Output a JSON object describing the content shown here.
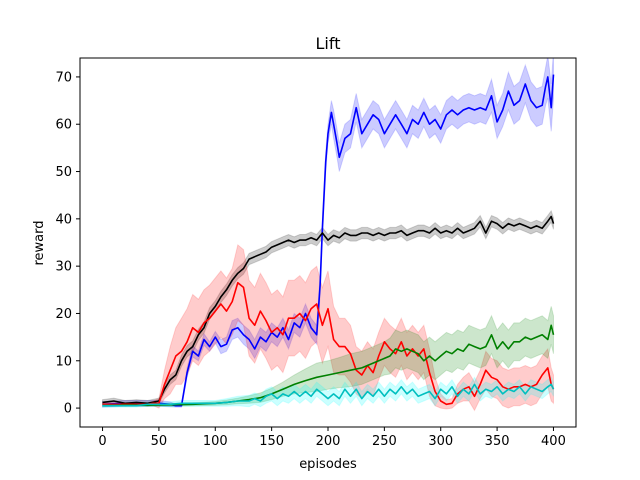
{
  "chart_data": {
    "type": "line",
    "title": "Lift",
    "xlabel": "episodes",
    "ylabel": "reward",
    "xlim": [
      -20,
      420
    ],
    "ylim": [
      -4,
      74
    ],
    "xticks": [
      0,
      50,
      100,
      150,
      200,
      250,
      300,
      350,
      400
    ],
    "yticks": [
      0,
      10,
      20,
      30,
      40,
      50,
      60,
      70
    ],
    "grid": false,
    "legend": "none",
    "series": [
      {
        "color": "#0000ff",
        "band_color": "#0000ff",
        "x": [
          0,
          10,
          20,
          30,
          40,
          50,
          60,
          65,
          70,
          75,
          80,
          85,
          90,
          95,
          100,
          105,
          110,
          115,
          120,
          125,
          130,
          135,
          140,
          145,
          150,
          155,
          160,
          165,
          170,
          175,
          180,
          185,
          190,
          193,
          195,
          198,
          200,
          203,
          205,
          208,
          210,
          215,
          220,
          225,
          230,
          235,
          240,
          245,
          250,
          255,
          260,
          265,
          270,
          275,
          280,
          285,
          290,
          295,
          300,
          305,
          310,
          315,
          320,
          325,
          330,
          335,
          340,
          345,
          350,
          355,
          360,
          365,
          370,
          375,
          380,
          385,
          390,
          393,
          395,
          398,
          400
        ],
        "y": [
          0.8,
          0.9,
          1.0,
          1.0,
          1.0,
          1.0,
          0.8,
          0.5,
          0.5,
          7.5,
          12.0,
          11.0,
          14.5,
          13.0,
          15.0,
          13.0,
          13.5,
          16.5,
          17.0,
          15.5,
          14.5,
          12.5,
          15.0,
          14.0,
          16.0,
          15.0,
          17.0,
          14.5,
          18.0,
          17.0,
          20.0,
          17.0,
          15.5,
          26.0,
          38.0,
          52.0,
          58.0,
          62.5,
          60.0,
          56.0,
          53.0,
          57.0,
          58.0,
          63.5,
          58.0,
          60.0,
          62.0,
          61.0,
          58.0,
          60.0,
          62.0,
          60.0,
          58.0,
          61.0,
          60.0,
          62.5,
          60.0,
          61.0,
          59.0,
          62.0,
          63.0,
          62.0,
          63.0,
          63.5,
          63.0,
          63.5,
          63.0,
          66.0,
          60.5,
          63.0,
          67.0,
          64.0,
          65.0,
          68.5,
          65.0,
          63.5,
          64.0,
          68.0,
          70.0,
          63.5,
          70.5
        ],
        "band": [
          0.6,
          0.6,
          0.6,
          0.6,
          0.6,
          0.6,
          0.5,
          0.3,
          0.3,
          1.0,
          1.2,
          1.0,
          1.2,
          1.0,
          1.2,
          1.5,
          1.5,
          2.0,
          2.0,
          2.0,
          2.0,
          2.0,
          2.0,
          2.0,
          2.0,
          2.0,
          2.0,
          2.0,
          2.0,
          2.0,
          2.0,
          2.0,
          2.0,
          2.0,
          2.0,
          2.0,
          2.0,
          2.5,
          3.0,
          3.0,
          3.0,
          3.0,
          3.0,
          3.0,
          3.0,
          3.0,
          3.0,
          3.0,
          3.0,
          3.0,
          3.0,
          3.0,
          3.0,
          3.0,
          3.0,
          3.0,
          3.0,
          3.0,
          3.0,
          3.0,
          3.0,
          3.0,
          3.0,
          3.0,
          3.0,
          3.0,
          3.0,
          3.5,
          3.5,
          3.5,
          4.0,
          4.0,
          4.0,
          4.0,
          4.0,
          4.0,
          4.0,
          4.0,
          4.5,
          5.0,
          5.0
        ]
      },
      {
        "color": "#000000",
        "band_color": "#000000",
        "x": [
          0,
          10,
          20,
          30,
          40,
          50,
          55,
          60,
          65,
          70,
          75,
          80,
          85,
          90,
          95,
          100,
          105,
          110,
          115,
          120,
          125,
          130,
          135,
          140,
          145,
          150,
          155,
          160,
          165,
          170,
          175,
          180,
          185,
          190,
          195,
          200,
          205,
          210,
          215,
          220,
          225,
          230,
          235,
          240,
          245,
          250,
          255,
          260,
          265,
          270,
          275,
          280,
          285,
          290,
          295,
          300,
          305,
          310,
          315,
          320,
          325,
          330,
          335,
          340,
          345,
          350,
          355,
          360,
          365,
          370,
          375,
          380,
          385,
          390,
          395,
          398,
          400
        ],
        "y": [
          1.2,
          1.5,
          1.0,
          1.2,
          1.0,
          1.5,
          4.0,
          6.0,
          7.0,
          10.0,
          12.0,
          13.0,
          15.5,
          17.0,
          20.0,
          21.5,
          23.5,
          25.0,
          27.0,
          28.5,
          29.5,
          31.5,
          32.0,
          32.5,
          33.0,
          34.0,
          34.5,
          35.0,
          35.5,
          35.0,
          35.5,
          35.5,
          36.0,
          35.5,
          37.0,
          35.5,
          36.5,
          36.0,
          37.0,
          36.5,
          36.5,
          37.0,
          37.0,
          36.5,
          37.0,
          36.5,
          37.0,
          37.0,
          37.5,
          36.5,
          37.0,
          37.5,
          37.5,
          37.0,
          38.0,
          37.0,
          37.5,
          37.0,
          38.0,
          37.0,
          37.5,
          38.0,
          39.5,
          37.0,
          39.5,
          39.0,
          38.0,
          39.0,
          38.5,
          39.0,
          38.5,
          38.0,
          38.5,
          38.0,
          39.5,
          40.5,
          39.0
        ],
        "band": [
          0.6,
          0.6,
          0.6,
          0.6,
          0.6,
          0.6,
          0.8,
          1.0,
          1.0,
          1.2,
          1.2,
          1.2,
          1.2,
          1.2,
          1.2,
          1.2,
          1.2,
          1.2,
          1.2,
          1.2,
          1.2,
          1.2,
          1.2,
          1.2,
          1.2,
          1.2,
          1.2,
          1.2,
          1.2,
          1.2,
          1.2,
          1.2,
          1.2,
          1.2,
          1.2,
          1.2,
          1.2,
          1.2,
          1.2,
          1.2,
          1.2,
          1.2,
          1.2,
          1.2,
          1.2,
          1.2,
          1.2,
          1.2,
          1.2,
          1.2,
          1.2,
          1.2,
          1.2,
          1.2,
          1.2,
          1.2,
          1.2,
          1.2,
          1.2,
          1.2,
          1.2,
          1.2,
          1.2,
          1.2,
          1.2,
          1.2,
          1.2,
          1.2,
          1.2,
          1.2,
          1.2,
          1.2,
          1.2,
          1.2,
          1.2,
          1.2,
          1.2
        ]
      },
      {
        "color": "#ff0000",
        "band_color": "#ff0000",
        "x": [
          0,
          10,
          20,
          30,
          40,
          45,
          50,
          55,
          60,
          65,
          70,
          75,
          80,
          85,
          90,
          95,
          100,
          105,
          110,
          115,
          120,
          125,
          130,
          135,
          140,
          145,
          150,
          155,
          160,
          165,
          170,
          175,
          180,
          185,
          190,
          195,
          200,
          205,
          210,
          215,
          220,
          225,
          230,
          235,
          240,
          245,
          250,
          255,
          260,
          265,
          270,
          275,
          280,
          285,
          290,
          295,
          300,
          305,
          310,
          315,
          320,
          325,
          330,
          335,
          340,
          345,
          350,
          355,
          360,
          365,
          370,
          375,
          380,
          385,
          390,
          395,
          398,
          400
        ],
        "y": [
          0.8,
          0.8,
          0.8,
          0.8,
          0.8,
          1.0,
          1.0,
          5.0,
          8.0,
          11.0,
          12.0,
          14.0,
          17.0,
          16.0,
          18.0,
          19.0,
          20.5,
          22.0,
          20.5,
          22.5,
          26.5,
          25.5,
          19.0,
          17.5,
          20.5,
          18.5,
          16.0,
          17.0,
          15.5,
          19.0,
          19.0,
          20.0,
          18.5,
          21.0,
          22.0,
          17.5,
          21.0,
          14.5,
          13.0,
          13.0,
          11.5,
          8.0,
          7.0,
          9.0,
          7.5,
          11.0,
          14.0,
          12.5,
          11.5,
          14.0,
          11.0,
          12.5,
          11.0,
          12.5,
          7.5,
          3.5,
          1.5,
          0.8,
          1.0,
          3.0,
          4.0,
          4.5,
          2.5,
          5.0,
          8.0,
          6.5,
          6.0,
          4.5,
          4.0,
          4.5,
          4.5,
          5.0,
          4.5,
          5.0,
          7.0,
          8.5,
          5.0,
          4.0
        ],
        "band": [
          0.3,
          0.3,
          0.3,
          0.3,
          0.3,
          0.5,
          1.0,
          3.0,
          5.0,
          6.0,
          7.0,
          7.0,
          7.0,
          7.0,
          7.0,
          7.0,
          7.0,
          7.0,
          7.0,
          7.0,
          8.0,
          8.0,
          8.0,
          8.0,
          8.0,
          8.0,
          8.0,
          8.0,
          8.0,
          8.0,
          8.0,
          8.0,
          8.0,
          8.0,
          8.0,
          8.0,
          8.0,
          7.0,
          6.0,
          6.0,
          6.0,
          5.0,
          5.0,
          5.0,
          5.0,
          5.0,
          5.0,
          5.0,
          5.0,
          5.0,
          5.0,
          5.0,
          5.0,
          5.0,
          5.0,
          3.0,
          1.5,
          1.0,
          1.0,
          2.0,
          2.5,
          3.0,
          3.0,
          3.0,
          4.0,
          4.0,
          4.0,
          4.0,
          4.0,
          4.0,
          4.0,
          4.0,
          4.0,
          4.0,
          4.0,
          4.0,
          3.5,
          3.0
        ]
      },
      {
        "color": "#008000",
        "band_color": "#008000",
        "x": [
          0,
          20,
          40,
          60,
          80,
          100,
          110,
          120,
          130,
          140,
          150,
          160,
          170,
          180,
          190,
          200,
          210,
          220,
          230,
          240,
          250,
          255,
          260,
          265,
          270,
          275,
          280,
          285,
          290,
          295,
          300,
          305,
          310,
          315,
          320,
          325,
          330,
          335,
          340,
          345,
          350,
          355,
          360,
          365,
          370,
          375,
          380,
          385,
          390,
          395,
          398,
          400
        ],
        "y": [
          0.5,
          0.6,
          0.6,
          0.7,
          0.8,
          1.0,
          1.2,
          1.5,
          1.8,
          2.2,
          3.0,
          4.0,
          5.0,
          5.8,
          6.5,
          7.0,
          7.5,
          8.0,
          8.5,
          9.5,
          10.5,
          11.0,
          12.5,
          12.0,
          12.5,
          12.0,
          11.5,
          10.0,
          11.0,
          10.0,
          11.0,
          12.0,
          11.5,
          12.5,
          12.0,
          13.5,
          13.0,
          12.5,
          13.0,
          15.5,
          12.5,
          14.0,
          12.5,
          14.0,
          14.0,
          15.0,
          14.5,
          15.0,
          15.5,
          14.5,
          17.5,
          15.5
        ],
        "band": [
          0.2,
          0.2,
          0.2,
          0.3,
          0.3,
          0.4,
          0.5,
          0.6,
          0.8,
          1.0,
          1.2,
          1.5,
          2.0,
          2.5,
          3.0,
          3.0,
          3.2,
          3.5,
          3.5,
          3.5,
          3.5,
          3.8,
          4.0,
          4.0,
          4.0,
          4.0,
          4.0,
          4.0,
          4.0,
          4.0,
          4.0,
          4.0,
          4.0,
          4.0,
          4.0,
          4.0,
          4.0,
          4.0,
          4.0,
          4.0,
          4.0,
          4.0,
          4.0,
          4.0,
          4.0,
          4.0,
          4.0,
          4.0,
          4.0,
          4.0,
          4.0,
          4.0
        ]
      },
      {
        "color": "#00bfbf",
        "band_color": "#00ffff",
        "x": [
          0,
          10,
          20,
          30,
          40,
          50,
          60,
          70,
          80,
          90,
          100,
          110,
          120,
          130,
          135,
          140,
          145,
          150,
          155,
          160,
          165,
          170,
          175,
          180,
          185,
          190,
          195,
          200,
          205,
          210,
          215,
          220,
          225,
          230,
          235,
          240,
          245,
          250,
          255,
          260,
          265,
          270,
          275,
          280,
          285,
          290,
          295,
          300,
          305,
          310,
          315,
          320,
          325,
          330,
          335,
          340,
          345,
          350,
          355,
          360,
          365,
          370,
          375,
          380,
          385,
          390,
          395,
          398,
          400
        ],
        "y": [
          0.5,
          0.5,
          0.5,
          0.5,
          0.8,
          0.8,
          0.8,
          1.0,
          1.0,
          1.0,
          1.0,
          1.2,
          1.5,
          1.5,
          2.0,
          1.5,
          2.5,
          3.0,
          2.0,
          3.0,
          2.5,
          3.5,
          2.5,
          3.5,
          2.5,
          4.0,
          3.0,
          2.0,
          3.0,
          2.0,
          4.0,
          2.5,
          4.0,
          2.0,
          3.5,
          2.5,
          4.0,
          2.5,
          4.0,
          3.0,
          4.5,
          3.0,
          4.0,
          2.5,
          3.0,
          3.5,
          2.0,
          4.0,
          3.0,
          4.5,
          2.5,
          4.0,
          3.0,
          5.0,
          3.0,
          4.0,
          3.5,
          4.5,
          3.0,
          4.0,
          3.5,
          4.5,
          3.0,
          4.5,
          4.0,
          3.5,
          4.5,
          5.0,
          4.0
        ],
        "band": [
          0.3,
          0.3,
          0.3,
          0.3,
          0.4,
          0.4,
          0.5,
          0.6,
          0.6,
          0.6,
          0.6,
          0.8,
          1.0,
          1.2,
          1.2,
          1.2,
          1.5,
          1.5,
          1.5,
          1.5,
          1.5,
          1.5,
          1.5,
          1.5,
          1.5,
          1.5,
          1.5,
          1.5,
          1.5,
          1.5,
          1.5,
          1.5,
          1.5,
          1.5,
          1.5,
          1.5,
          1.5,
          1.5,
          1.5,
          1.5,
          1.5,
          1.5,
          1.5,
          1.5,
          1.5,
          1.5,
          1.5,
          1.5,
          1.5,
          1.5,
          1.5,
          1.5,
          1.5,
          1.5,
          1.5,
          1.5,
          1.5,
          1.5,
          1.5,
          1.5,
          1.5,
          1.5,
          1.5,
          1.5,
          1.5,
          1.5,
          1.5,
          1.5,
          1.5
        ]
      }
    ]
  }
}
